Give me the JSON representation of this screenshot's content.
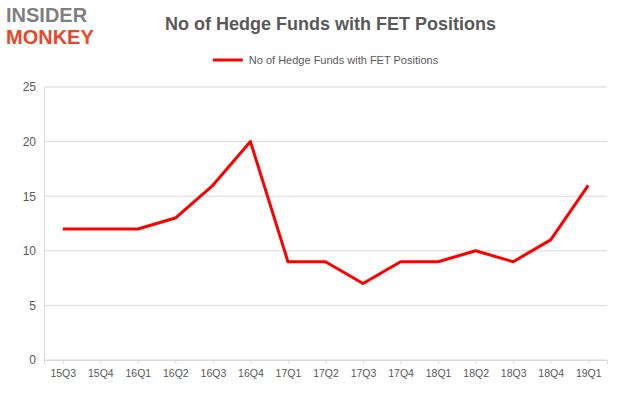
{
  "chart_data": {
    "type": "line",
    "title": "No of Hedge Funds with FET Positions",
    "annotations": [
      "INSIDER",
      "MONKEY"
    ],
    "categories": [
      "15Q3",
      "15Q4",
      "16Q1",
      "16Q2",
      "16Q3",
      "16Q4",
      "17Q1",
      "17Q2",
      "17Q3",
      "17Q4",
      "18Q1",
      "18Q2",
      "18Q3",
      "18Q4",
      "19Q1"
    ],
    "series": [
      {
        "name": "No of Hedge Funds with FET Positions",
        "color": "#ff0000",
        "values": [
          12,
          12,
          12,
          13,
          16,
          20,
          9,
          9,
          7,
          9,
          9,
          10,
          9,
          11,
          16
        ]
      }
    ],
    "ylim": [
      0,
      25
    ],
    "yticks": [
      0,
      5,
      10,
      15,
      20,
      25
    ],
    "grid": true,
    "legend": "top"
  }
}
